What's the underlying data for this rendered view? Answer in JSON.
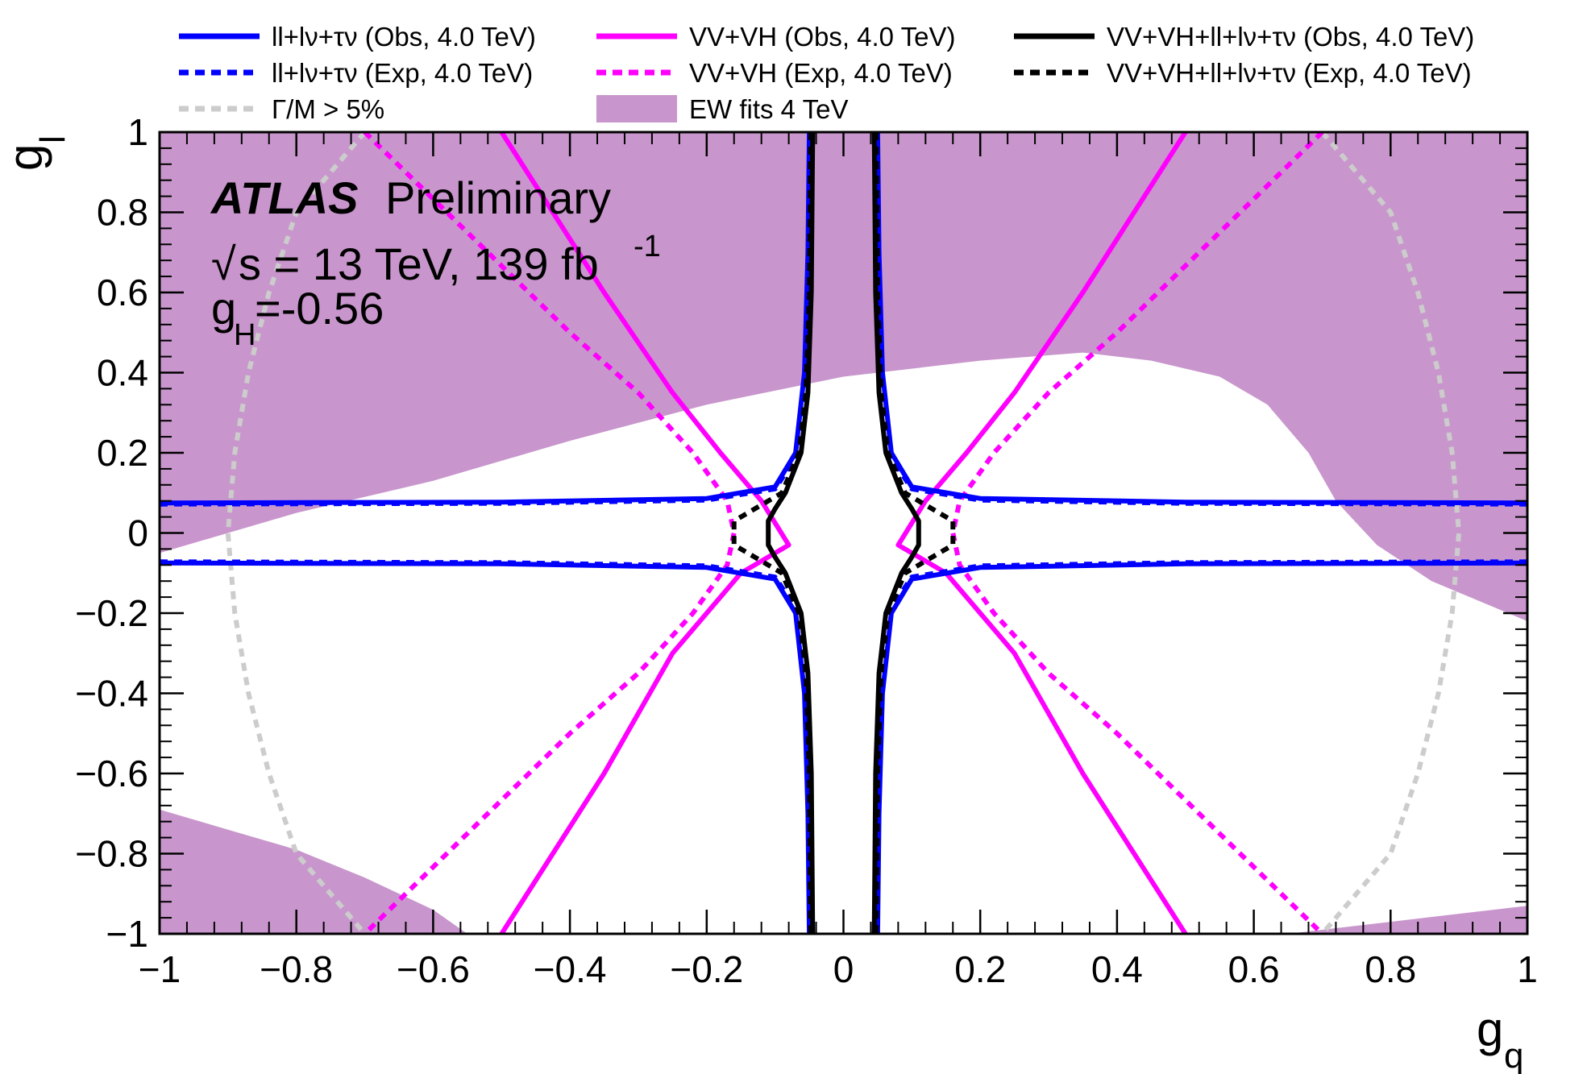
{
  "chart_data": {
    "type": "line",
    "title": "",
    "xlabel": "g",
    "xlabel_sub": "q",
    "ylabel": "g",
    "ylabel_sub": "l",
    "xlim": [
      -1,
      1
    ],
    "ylim": [
      -1,
      1
    ],
    "grid": false,
    "legend_position": "top",
    "x_ticks": [
      {
        "v": -1,
        "label": "−1"
      },
      {
        "v": -0.8,
        "label": "−0.8"
      },
      {
        "v": -0.6,
        "label": "−0.6"
      },
      {
        "v": -0.4,
        "label": "−0.4"
      },
      {
        "v": -0.2,
        "label": "−0.2"
      },
      {
        "v": 0,
        "label": "0"
      },
      {
        "v": 0.2,
        "label": "0.2"
      },
      {
        "v": 0.4,
        "label": "0.4"
      },
      {
        "v": 0.6,
        "label": "0.6"
      },
      {
        "v": 0.8,
        "label": "0.8"
      },
      {
        "v": 1,
        "label": "1"
      }
    ],
    "y_ticks": [
      {
        "v": 1,
        "label": "1"
      },
      {
        "v": 0.8,
        "label": "0.8"
      },
      {
        "v": 0.6,
        "label": "0.6"
      },
      {
        "v": 0.4,
        "label": "0.4"
      },
      {
        "v": 0.2,
        "label": "0.2"
      },
      {
        "v": 0,
        "label": "0"
      },
      {
        "v": -0.2,
        "label": "−0.2"
      },
      {
        "v": -0.4,
        "label": "−0.4"
      },
      {
        "v": -0.6,
        "label": "−0.6"
      },
      {
        "v": -0.8,
        "label": "−0.8"
      },
      {
        "v": -1,
        "label": "−1"
      }
    ],
    "annotations": {
      "atlas": "ATLAS",
      "preliminary": "Preliminary",
      "sqrt": "√",
      "energy_lumi": "s = 13 TeV, 139 fb",
      "lumi_sup": "-1",
      "gh_main": "g",
      "gh_sub": "H",
      "gh_value": "=-0.56"
    },
    "legend": [
      {
        "label": "ll+lν+τν  (Obs, 4.0 TeV)",
        "color": "#0000ff",
        "style": "solid"
      },
      {
        "label": "ll+lν+τν  (Exp, 4.0 TeV)",
        "color": "#0000ff",
        "style": "dashed"
      },
      {
        "label": "Γ/M > 5%",
        "color": "#cccccc",
        "style": "dashed"
      },
      {
        "label": "VV+VH (Obs, 4.0 TeV)",
        "color": "#ff00ff",
        "style": "solid"
      },
      {
        "label": "VV+VH (Exp, 4.0 TeV)",
        "color": "#ff00ff",
        "style": "dashed"
      },
      {
        "label": "EW fits 4 TeV",
        "color": "#c896cc",
        "style": "fill"
      },
      {
        "label": "VV+VH+ll+lν+τν  (Obs, 4.0 TeV)",
        "color": "#000000",
        "style": "solid"
      },
      {
        "label": "VV+VH+ll+lν+τν  (Exp, 4.0 TeV)",
        "color": "#000000",
        "style": "dashed"
      }
    ],
    "series": [
      {
        "name": "EW fits 4 TeV",
        "kind": "area",
        "color": "#c896cc",
        "polygons": [
          [
            [
              -1,
              -0.05
            ],
            [
              -0.9,
              0
            ],
            [
              -0.8,
              0.05
            ],
            [
              -0.6,
              0.13
            ],
            [
              -0.4,
              0.23
            ],
            [
              -0.2,
              0.32
            ],
            [
              0,
              0.39
            ],
            [
              0.2,
              0.43
            ],
            [
              0.35,
              0.45
            ],
            [
              0.45,
              0.43
            ],
            [
              0.55,
              0.39
            ],
            [
              0.62,
              0.32
            ],
            [
              0.68,
              0.2
            ],
            [
              0.72,
              0.08
            ],
            [
              0.78,
              -0.03
            ],
            [
              0.86,
              -0.12
            ],
            [
              0.93,
              -0.17
            ],
            [
              1,
              -0.22
            ],
            [
              1,
              1
            ],
            [
              -1,
              1
            ]
          ],
          [
            [
              -1,
              -0.69
            ],
            [
              -0.9,
              -0.74
            ],
            [
              -0.8,
              -0.79
            ],
            [
              -0.7,
              -0.86
            ],
            [
              -0.6,
              -0.94
            ],
            [
              -0.55,
              -1
            ],
            [
              -1,
              -1
            ]
          ],
          [
            [
              0.65,
              -1
            ],
            [
              0.8,
              -0.97
            ],
            [
              0.9,
              -0.95
            ],
            [
              1,
              -0.93
            ],
            [
              1,
              -1
            ]
          ]
        ]
      },
      {
        "name": "Γ/M > 5%",
        "kind": "line",
        "color": "#cccccc",
        "style": "dashed",
        "lines": [
          [
            [
              -0.7,
              1
            ],
            [
              -0.75,
              0.9
            ],
            [
              -0.8,
              0.8
            ],
            [
              -0.84,
              0.6
            ],
            [
              -0.87,
              0.4
            ],
            [
              -0.89,
              0.2
            ],
            [
              -0.9,
              0
            ],
            [
              -0.89,
              -0.2
            ],
            [
              -0.87,
              -0.4
            ],
            [
              -0.84,
              -0.6
            ],
            [
              -0.8,
              -0.8
            ],
            [
              -0.75,
              -0.9
            ],
            [
              -0.7,
              -1
            ]
          ],
          [
            [
              0.7,
              1
            ],
            [
              0.75,
              0.9
            ],
            [
              0.8,
              0.8
            ],
            [
              0.84,
              0.6
            ],
            [
              0.87,
              0.4
            ],
            [
              0.89,
              0.2
            ],
            [
              0.9,
              0
            ],
            [
              0.89,
              -0.2
            ],
            [
              0.87,
              -0.4
            ],
            [
              0.84,
              -0.6
            ],
            [
              0.8,
              -0.8
            ],
            [
              0.75,
              -0.9
            ],
            [
              0.7,
              -1
            ]
          ]
        ]
      },
      {
        "name": "VV+VH (Exp, 4.0 TeV)",
        "kind": "line",
        "color": "#ff00ff",
        "style": "dashed",
        "lines": [
          [
            [
              -0.7,
              1
            ],
            [
              -0.55,
              0.75
            ],
            [
              -0.4,
              0.5
            ],
            [
              -0.3,
              0.35
            ],
            [
              -0.22,
              0.2
            ],
            [
              -0.17,
              0.08
            ],
            [
              -0.16,
              0
            ],
            [
              -0.17,
              -0.08
            ],
            [
              -0.22,
              -0.2
            ],
            [
              -0.3,
              -0.35
            ],
            [
              -0.4,
              -0.5
            ],
            [
              -0.55,
              -0.75
            ],
            [
              -0.7,
              -1
            ]
          ],
          [
            [
              0.7,
              1
            ],
            [
              0.55,
              0.75
            ],
            [
              0.4,
              0.5
            ],
            [
              0.3,
              0.35
            ],
            [
              0.22,
              0.2
            ],
            [
              0.17,
              0.08
            ],
            [
              0.16,
              0
            ],
            [
              0.17,
              -0.08
            ],
            [
              0.22,
              -0.2
            ],
            [
              0.3,
              -0.35
            ],
            [
              0.4,
              -0.5
            ],
            [
              0.55,
              -0.75
            ],
            [
              0.7,
              -1
            ]
          ]
        ]
      },
      {
        "name": "VV+VH (Obs, 4.0 TeV)",
        "kind": "line",
        "color": "#ff00ff",
        "style": "solid",
        "lines": [
          [
            [
              -0.5,
              1
            ],
            [
              -0.35,
              0.6
            ],
            [
              -0.25,
              0.35
            ],
            [
              -0.18,
              0.2
            ],
            [
              -0.12,
              0.08
            ],
            [
              -0.08,
              -0.03
            ],
            [
              -0.15,
              -0.1
            ],
            [
              -0.25,
              -0.3
            ],
            [
              -0.35,
              -0.6
            ],
            [
              -0.5,
              -1
            ]
          ],
          [
            [
              0.5,
              1
            ],
            [
              0.35,
              0.6
            ],
            [
              0.25,
              0.35
            ],
            [
              0.18,
              0.2
            ],
            [
              0.12,
              0.08
            ],
            [
              0.08,
              -0.03
            ],
            [
              0.15,
              -0.1
            ],
            [
              0.25,
              -0.3
            ],
            [
              0.35,
              -0.6
            ],
            [
              0.5,
              -1
            ]
          ]
        ]
      },
      {
        "name": "ll+lν+τν  (Exp, 4.0 TeV)",
        "kind": "line",
        "color": "#0000ff",
        "style": "dashed",
        "lines": [
          [
            [
              -1,
              0.072
            ],
            [
              -0.5,
              0.074
            ],
            [
              -0.2,
              0.082
            ],
            [
              -0.1,
              0.11
            ],
            [
              -0.065,
              0.2
            ],
            [
              -0.052,
              0.4
            ],
            [
              -0.048,
              0.7
            ],
            [
              -0.046,
              1
            ]
          ],
          [
            [
              -1,
              -0.072
            ],
            [
              -0.5,
              -0.074
            ],
            [
              -0.2,
              -0.082
            ],
            [
              -0.1,
              -0.11
            ],
            [
              -0.065,
              -0.2
            ],
            [
              -0.052,
              -0.4
            ],
            [
              -0.048,
              -0.7
            ],
            [
              -0.046,
              -1
            ]
          ],
          [
            [
              1,
              0.072
            ],
            [
              0.5,
              0.074
            ],
            [
              0.2,
              0.082
            ],
            [
              0.1,
              0.11
            ],
            [
              0.065,
              0.2
            ],
            [
              0.052,
              0.4
            ],
            [
              0.048,
              0.7
            ],
            [
              0.046,
              1
            ]
          ],
          [
            [
              1,
              -0.072
            ],
            [
              0.5,
              -0.074
            ],
            [
              0.2,
              -0.082
            ],
            [
              0.1,
              -0.11
            ],
            [
              0.065,
              -0.2
            ],
            [
              0.052,
              -0.4
            ],
            [
              0.048,
              -0.7
            ],
            [
              0.046,
              -1
            ]
          ]
        ]
      },
      {
        "name": "ll+lν+τν  (Obs, 4.0 TeV)",
        "kind": "line",
        "color": "#0000ff",
        "style": "solid",
        "lines": [
          [
            [
              -1,
              0.075
            ],
            [
              -0.5,
              0.077
            ],
            [
              -0.2,
              0.086
            ],
            [
              -0.1,
              0.115
            ],
            [
              -0.07,
              0.2
            ],
            [
              -0.057,
              0.4
            ],
            [
              -0.052,
              0.7
            ],
            [
              -0.05,
              1
            ]
          ],
          [
            [
              -1,
              -0.075
            ],
            [
              -0.5,
              -0.077
            ],
            [
              -0.2,
              -0.086
            ],
            [
              -0.1,
              -0.115
            ],
            [
              -0.07,
              -0.2
            ],
            [
              -0.057,
              -0.4
            ],
            [
              -0.052,
              -0.7
            ],
            [
              -0.05,
              -1
            ]
          ],
          [
            [
              1,
              0.075
            ],
            [
              0.5,
              0.077
            ],
            [
              0.2,
              0.086
            ],
            [
              0.1,
              0.115
            ],
            [
              0.07,
              0.2
            ],
            [
              0.057,
              0.4
            ],
            [
              0.052,
              0.7
            ],
            [
              0.05,
              1
            ]
          ],
          [
            [
              1,
              -0.075
            ],
            [
              0.5,
              -0.077
            ],
            [
              0.2,
              -0.086
            ],
            [
              0.1,
              -0.115
            ],
            [
              0.07,
              -0.2
            ],
            [
              0.057,
              -0.4
            ],
            [
              0.052,
              -0.7
            ],
            [
              0.05,
              -1
            ]
          ]
        ]
      },
      {
        "name": "VV+VH+ll+lν+τν  (Exp, 4.0 TeV)",
        "kind": "line",
        "color": "#000000",
        "style": "dashed",
        "lines": [
          [
            [
              -0.048,
              1
            ],
            [
              -0.05,
              0.6
            ],
            [
              -0.055,
              0.35
            ],
            [
              -0.065,
              0.2
            ],
            [
              -0.09,
              0.1
            ],
            [
              -0.12,
              0.07
            ],
            [
              -0.16,
              0.03
            ],
            [
              -0.16,
              -0.03
            ],
            [
              -0.12,
              -0.07
            ],
            [
              -0.09,
              -0.1
            ],
            [
              -0.065,
              -0.2
            ],
            [
              -0.055,
              -0.35
            ],
            [
              -0.05,
              -0.6
            ],
            [
              -0.048,
              -1
            ]
          ],
          [
            [
              0.048,
              1
            ],
            [
              0.05,
              0.6
            ],
            [
              0.055,
              0.35
            ],
            [
              0.065,
              0.2
            ],
            [
              0.09,
              0.1
            ],
            [
              0.12,
              0.07
            ],
            [
              0.16,
              0.03
            ],
            [
              0.16,
              -0.03
            ],
            [
              0.12,
              -0.07
            ],
            [
              0.09,
              -0.1
            ],
            [
              0.065,
              -0.2
            ],
            [
              0.055,
              -0.35
            ],
            [
              0.05,
              -0.6
            ],
            [
              0.048,
              -1
            ]
          ]
        ]
      },
      {
        "name": "VV+VH+ll+lν+τν  (Obs, 4.0 TeV)",
        "kind": "line",
        "color": "#000000",
        "style": "solid",
        "lines": [
          [
            [
              -0.045,
              1
            ],
            [
              -0.047,
              0.6
            ],
            [
              -0.052,
              0.35
            ],
            [
              -0.062,
              0.2
            ],
            [
              -0.085,
              0.1
            ],
            [
              -0.1,
              0.06
            ],
            [
              -0.11,
              0.03
            ],
            [
              -0.11,
              -0.03
            ],
            [
              -0.1,
              -0.06
            ],
            [
              -0.085,
              -0.1
            ],
            [
              -0.062,
              -0.2
            ],
            [
              -0.052,
              -0.35
            ],
            [
              -0.047,
              -0.6
            ],
            [
              -0.045,
              -1
            ]
          ],
          [
            [
              0.045,
              1
            ],
            [
              0.047,
              0.6
            ],
            [
              0.052,
              0.35
            ],
            [
              0.062,
              0.2
            ],
            [
              0.085,
              0.1
            ],
            [
              0.1,
              0.06
            ],
            [
              0.11,
              0.03
            ],
            [
              0.11,
              -0.03
            ],
            [
              0.1,
              -0.06
            ],
            [
              0.085,
              -0.1
            ],
            [
              0.062,
              -0.2
            ],
            [
              0.052,
              -0.35
            ],
            [
              0.047,
              -0.6
            ],
            [
              0.045,
              -1
            ]
          ]
        ]
      }
    ]
  }
}
